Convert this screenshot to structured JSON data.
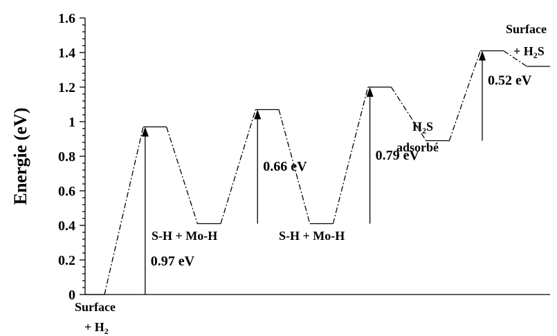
{
  "chart_data": {
    "type": "line",
    "ylabel": "Energie (eV)",
    "ylim": [
      0,
      1.6
    ],
    "y_ticks": [
      "0",
      "0.2",
      "0.4",
      "0.6",
      "0.8",
      "1",
      "1.2",
      "1.4",
      "1.6"
    ],
    "grid": false,
    "levels": [
      {
        "x_start": 0.0,
        "x_end": 1.0,
        "y": 0.0
      },
      {
        "x_start": 3.0,
        "x_end": 4.2,
        "y": 0.97
      },
      {
        "x_start": 5.8,
        "x_end": 7.0,
        "y": 0.41
      },
      {
        "x_start": 8.8,
        "x_end": 10.0,
        "y": 1.07
      },
      {
        "x_start": 11.6,
        "x_end": 12.8,
        "y": 0.41
      },
      {
        "x_start": 14.6,
        "x_end": 15.8,
        "y": 1.2
      },
      {
        "x_start": 17.6,
        "x_end": 18.8,
        "y": 0.89
      },
      {
        "x_start": 20.4,
        "x_end": 21.6,
        "y": 1.41
      },
      {
        "x_start": 22.8,
        "x_end": 24.0,
        "y": 1.32
      }
    ],
    "barriers": [
      {
        "x": 3.1,
        "y_from": 0.0,
        "y_to": 0.97,
        "label": "0.97 eV"
      },
      {
        "x": 8.9,
        "y_from": 0.41,
        "y_to": 1.07,
        "label": "0.66 eV"
      },
      {
        "x": 14.7,
        "y_from": 0.41,
        "y_to": 1.2,
        "label": "0.79 eV"
      },
      {
        "x": 20.5,
        "y_from": 0.89,
        "y_to": 1.41,
        "label": "0.52 eV"
      }
    ],
    "annotations": {
      "surface_h2_line1": "Surface",
      "surface_h2_line2": "+ H",
      "surface_h2_sub": "2",
      "int1": "S-H + Mo-H",
      "int2": "S-H + Mo-H",
      "h2s_main": "H",
      "h2s_sub": "2",
      "h2s_tail": "S",
      "adsorbe": "adsorbé",
      "surface_h2s_line1": "Surface",
      "surface_h2s_pre": "+ H",
      "surface_h2s_sub": "2",
      "surface_h2s_tail": "S"
    }
  }
}
